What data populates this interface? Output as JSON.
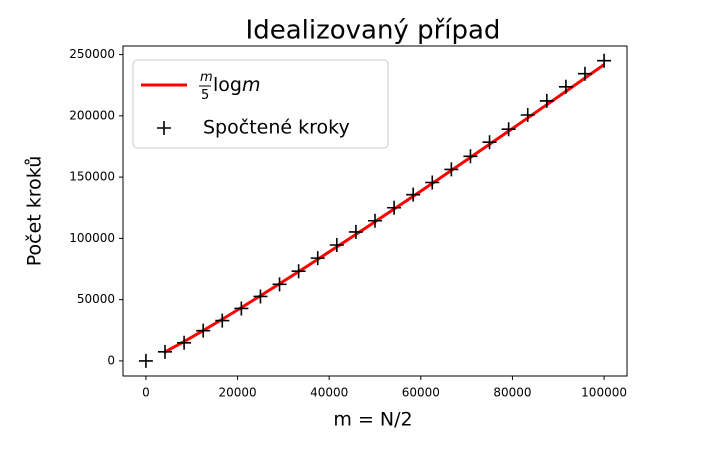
{
  "chart_data": {
    "type": "line-scatter",
    "title": "Idealizovaný případ",
    "xlabel": "m = N/2",
    "ylabel": "Počet kroků",
    "xlim": [
      -5000,
      105000
    ],
    "ylim": [
      -12300,
      257000
    ],
    "xticks": [
      0,
      20000,
      40000,
      60000,
      80000,
      100000
    ],
    "yticks": [
      0,
      50000,
      100000,
      150000,
      200000,
      250000
    ],
    "grid": false,
    "legend": "upper left",
    "series": [
      {
        "name": "m/5 log m",
        "kind": "line",
        "color": "#ff0000",
        "x": [
          4167,
          8333,
          12500,
          16667,
          20833,
          25000,
          29167,
          33333,
          37500,
          41667,
          45833,
          50000,
          54167,
          58333,
          62500,
          66667,
          70833,
          75000,
          79167,
          83333,
          87500,
          91667,
          95833,
          100000
        ],
        "values": [
          7300,
          15800,
          24800,
          34000,
          43500,
          53200,
          63000,
          72900,
          82900,
          93100,
          103300,
          113600,
          124000,
          134400,
          144900,
          155500,
          166100,
          176800,
          187500,
          198300,
          209100,
          220000,
          230900,
          241800
        ]
      },
      {
        "name": "Spočtené kroky",
        "kind": "scatter",
        "color": "#000000",
        "x": [
          0,
          4167,
          8333,
          12500,
          16667,
          20833,
          25000,
          29167,
          33333,
          37500,
          41667,
          45833,
          50000,
          54167,
          58333,
          62500,
          66667,
          70833,
          75000,
          79167,
          83333,
          87500,
          91667,
          95833,
          100000
        ],
        "values": [
          0,
          7400,
          14800,
          24700,
          32900,
          42800,
          52600,
          62500,
          73200,
          83900,
          94600,
          105300,
          114400,
          125000,
          135700,
          145600,
          156300,
          167000,
          178500,
          189100,
          200700,
          212200,
          223700,
          234400,
          245000
        ]
      }
    ]
  }
}
